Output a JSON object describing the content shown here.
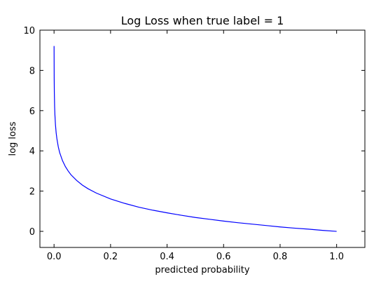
{
  "chart_data": {
    "type": "line",
    "title": "Log Loss when true label = 1",
    "xlabel": "predicted probability",
    "ylabel": "log loss",
    "xlim": [
      -0.05,
      1.1
    ],
    "ylim": [
      -0.8,
      10
    ],
    "xticks": [
      0.0,
      0.2,
      0.4,
      0.6,
      0.8,
      1.0
    ],
    "xtick_labels": [
      "0.0",
      "0.2",
      "0.4",
      "0.6",
      "0.8",
      "1.0"
    ],
    "yticks": [
      0,
      2,
      4,
      6,
      8,
      10
    ],
    "ytick_labels": [
      "0",
      "2",
      "4",
      "6",
      "8",
      "10"
    ],
    "grid": false,
    "legend": "none",
    "series": [
      {
        "color": "#0000ff",
        "x": [
          0.0001,
          0.0005,
          0.001,
          0.002,
          0.003,
          0.005,
          0.0075,
          0.01,
          0.015,
          0.02,
          0.03,
          0.04,
          0.05,
          0.06,
          0.08,
          0.1,
          0.12,
          0.15,
          0.2,
          0.25,
          0.3,
          0.35,
          0.4,
          0.45,
          0.5,
          0.55,
          0.6,
          0.65,
          0.7,
          0.75,
          0.8,
          0.85,
          0.9,
          0.95,
          1.0
        ],
        "y": [
          9.21,
          7.6,
          6.91,
          6.21,
          5.81,
          5.3,
          4.89,
          4.61,
          4.2,
          3.91,
          3.51,
          3.22,
          3.0,
          2.81,
          2.53,
          2.3,
          2.12,
          1.9,
          1.61,
          1.39,
          1.2,
          1.05,
          0.92,
          0.8,
          0.69,
          0.6,
          0.51,
          0.43,
          0.36,
          0.29,
          0.22,
          0.16,
          0.11,
          0.05,
          0.0
        ]
      }
    ]
  }
}
